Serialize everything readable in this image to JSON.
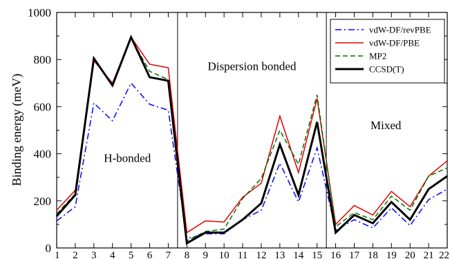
{
  "chart_data": {
    "type": "line",
    "title": "",
    "xlabel": "",
    "ylabel": "Binding energy (meV)",
    "x": [
      1,
      2,
      3,
      4,
      5,
      6,
      7,
      8,
      9,
      10,
      11,
      12,
      13,
      14,
      15,
      16,
      17,
      18,
      19,
      20,
      21,
      22
    ],
    "xlim": [
      1,
      22
    ],
    "ylim": [
      0,
      1000
    ],
    "y_ticks": [
      0,
      200,
      400,
      600,
      800,
      1000
    ],
    "grid": false,
    "legend_position": "top-right",
    "region_dividers": [
      7.5,
      15.5
    ],
    "region_labels": [
      {
        "text": "H-bonded",
        "x": 4.8,
        "y": 365
      },
      {
        "text": "Dispersion bonded",
        "x": 11.5,
        "y": 755
      },
      {
        "text": "Mixed",
        "x": 18.7,
        "y": 505
      }
    ],
    "series": [
      {
        "name": "vdW-DF/revPBE",
        "color": "#0000ff",
        "dash": "9,4,2,4",
        "width": 1.5,
        "values": [
          115,
          175,
          615,
          540,
          700,
          610,
          585,
          40,
          60,
          60,
          120,
          160,
          360,
          195,
          425,
          75,
          120,
          85,
          170,
          95,
          205,
          250
        ]
      },
      {
        "name": "vdW-DF/PBE",
        "color": "#e00000",
        "dash": "",
        "width": 1.5,
        "values": [
          160,
          245,
          795,
          700,
          895,
          780,
          765,
          65,
          115,
          110,
          215,
          275,
          560,
          320,
          635,
          100,
          180,
          140,
          240,
          175,
          305,
          370
        ]
      },
      {
        "name": "MP2",
        "color": "#007000",
        "dash": "7,4",
        "width": 1.5,
        "values": [
          145,
          230,
          800,
          690,
          890,
          750,
          715,
          30,
          70,
          80,
          210,
          295,
          500,
          355,
          650,
          90,
          150,
          120,
          220,
          160,
          305,
          340
        ]
      },
      {
        "name": "CCSD(T)",
        "color": "#000000",
        "dash": "",
        "width": 3,
        "values": [
          135,
          225,
          805,
          690,
          895,
          725,
          710,
          20,
          65,
          65,
          120,
          190,
          440,
          225,
          535,
          65,
          140,
          105,
          195,
          120,
          250,
          305
        ]
      }
    ]
  }
}
